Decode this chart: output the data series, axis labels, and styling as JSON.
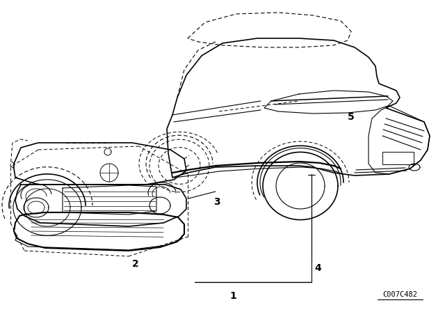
{
  "background_color": "#ffffff",
  "fig_width": 6.4,
  "fig_height": 4.48,
  "dpi": 100,
  "diagram_code": "C007C482",
  "label_fontsize": 10,
  "code_fontsize": 7.5,
  "line_color": "#000000"
}
